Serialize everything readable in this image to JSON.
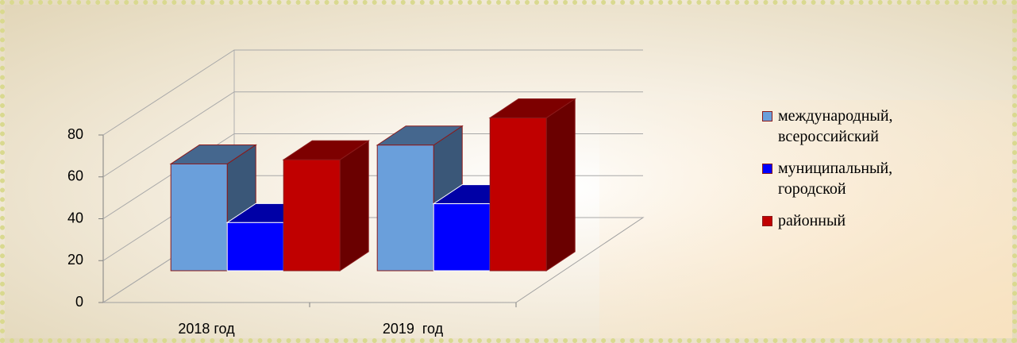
{
  "chart_data": {
    "type": "bar3d",
    "categories": [
      "2018 год",
      "2019  год"
    ],
    "series": [
      {
        "name": "международный, всероссийский",
        "color": "#6a9fdb",
        "values": [
          51,
          60
        ]
      },
      {
        "name": "муниципальный, городской",
        "color": "#0000ff",
        "values": [
          23,
          32
        ]
      },
      {
        "name": "районный",
        "color": "#c00000",
        "values": [
          53,
          73
        ]
      }
    ],
    "ylim": [
      0,
      80
    ],
    "yticks": [
      0,
      20,
      40,
      60,
      80
    ],
    "grid": true,
    "legend": "right"
  }
}
